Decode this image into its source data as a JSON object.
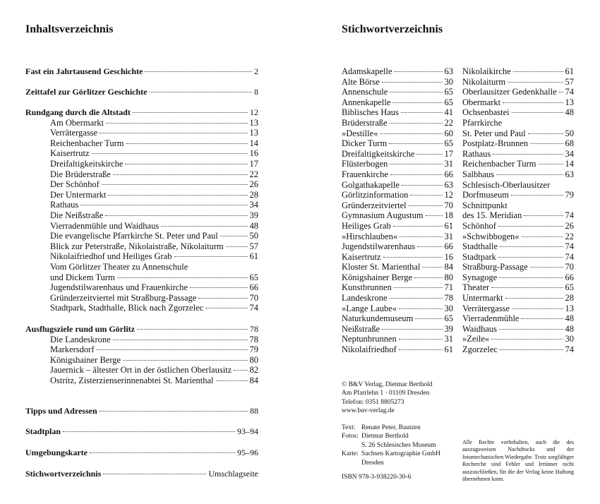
{
  "left": {
    "title": "Inhaltsverzeichnis",
    "sections": [
      {
        "heading": "Fast ein Jahrtausend Geschichte",
        "page": 2,
        "items": []
      },
      {
        "heading": "Zeittafel zur Görlitzer Geschichte",
        "page": 8,
        "items": []
      },
      {
        "heading": "Rundgang durch die Altstadt",
        "page": 12,
        "items": [
          {
            "lines": [
              "Am Obermarkt"
            ],
            "page": 13
          },
          {
            "lines": [
              "Verrätergasse"
            ],
            "page": 13
          },
          {
            "lines": [
              "Reichenbacher Turm"
            ],
            "page": 14
          },
          {
            "lines": [
              "Kaisertrutz"
            ],
            "page": 16
          },
          {
            "lines": [
              "Dreifaltigkeitskirche"
            ],
            "page": 17
          },
          {
            "lines": [
              "Die Brüderstraße"
            ],
            "page": 22
          },
          {
            "lines": [
              "Der Schönhof"
            ],
            "page": 26
          },
          {
            "lines": [
              "Der Untermarkt"
            ],
            "page": 28
          },
          {
            "lines": [
              "Rathaus"
            ],
            "page": 34
          },
          {
            "lines": [
              "Die Neißstraße"
            ],
            "page": 39
          },
          {
            "lines": [
              "Vierradenmühle und Waidhaus"
            ],
            "page": 48
          },
          {
            "lines": [
              "Die evangelische Pfarrkirche St. Peter und Paul"
            ],
            "page": 50
          },
          {
            "lines": [
              "Blick zur Peterstraße, Nikolaistraße, Nikolaiturm"
            ],
            "page": 57
          },
          {
            "lines": [
              "Nikolaifriedhof und Heiliges Grab"
            ],
            "page": 61
          },
          {
            "lines": [
              "Vom Görlitzer Theater zu Annenschule",
              "und Dickem Turm"
            ],
            "page": 65
          },
          {
            "lines": [
              "Jugendstilwarenhaus und Frauenkirche"
            ],
            "page": 66
          },
          {
            "lines": [
              "Gründerzeitviertel mit Straßburg-Passage"
            ],
            "page": 70
          },
          {
            "lines": [
              "Stadtpark, Stadthalle, Blick nach Zgorzelec"
            ],
            "page": 74
          }
        ]
      },
      {
        "heading": "Ausflugsziele rund um Görlitz",
        "page": 78,
        "items": [
          {
            "lines": [
              "Die Landeskrone"
            ],
            "page": 78
          },
          {
            "lines": [
              "Markersdorf"
            ],
            "page": 79
          },
          {
            "lines": [
              "Königshainer Berge"
            ],
            "page": 80
          },
          {
            "lines": [
              "Jauernick – ältester Ort in der östlichen Oberlausitz"
            ],
            "page": 82
          },
          {
            "lines": [
              "Ostritz, Zisterzienserinnenabtei St. Marienthal"
            ],
            "page": 84
          }
        ]
      },
      {
        "heading": "Tipps und Adressen",
        "page": 88,
        "items": []
      },
      {
        "heading": "Stadtplan",
        "page": "93–94",
        "items": []
      },
      {
        "heading": "Umgebungskarte",
        "page": "95–96",
        "items": []
      },
      {
        "heading": "Stichwortverzeichnis",
        "page": "Umschlagseite",
        "items": []
      }
    ]
  },
  "right": {
    "title": "Stichwortverzeichnis",
    "index_columns": [
      [
        {
          "lines": [
            "Adamskapelle"
          ],
          "page": 63
        },
        {
          "lines": [
            "Alte Börse"
          ],
          "page": 30
        },
        {
          "lines": [
            "Annenschule"
          ],
          "page": 65
        },
        {
          "lines": [
            "Annenkapelle"
          ],
          "page": 65
        },
        {
          "lines": [
            "Biblisches Haus"
          ],
          "page": 41
        },
        {
          "lines": [
            "Brüderstraße"
          ],
          "page": 22
        },
        {
          "lines": [
            "»Destille«"
          ],
          "page": 60
        },
        {
          "lines": [
            "Dicker Turm"
          ],
          "page": 65
        },
        {
          "lines": [
            "Dreifaltigkeitskirche"
          ],
          "page": 17
        },
        {
          "lines": [
            "Flüsterbogen"
          ],
          "page": 31
        },
        {
          "lines": [
            "Frauenkirche"
          ],
          "page": 66
        },
        {
          "lines": [
            "Golgathakapelle"
          ],
          "page": 63
        },
        {
          "lines": [
            "Görlitzinformation"
          ],
          "page": 12
        },
        {
          "lines": [
            "Gründerzeitviertel"
          ],
          "page": 70
        },
        {
          "lines": [
            "Gymnasium Augustum"
          ],
          "page": 18
        },
        {
          "lines": [
            "Heiliges Grab"
          ],
          "page": 61
        },
        {
          "lines": [
            "»Hirschlauben«"
          ],
          "page": 31
        },
        {
          "lines": [
            "Jugendstilwarenhaus"
          ],
          "page": 66
        },
        {
          "lines": [
            "Kaisertrutz"
          ],
          "page": 16
        },
        {
          "lines": [
            "Kloster St. Marienthal"
          ],
          "page": 84
        },
        {
          "lines": [
            "Königshainer Berge"
          ],
          "page": 80
        },
        {
          "lines": [
            "Kunstbrunnen"
          ],
          "page": 71
        },
        {
          "lines": [
            "Landeskrone"
          ],
          "page": 78
        },
        {
          "lines": [
            "»Lange Laube«"
          ],
          "page": 30
        },
        {
          "lines": [
            "Naturkundemuseum"
          ],
          "page": 65
        },
        {
          "lines": [
            "Neißstraße"
          ],
          "page": 39
        },
        {
          "lines": [
            "Neptunbrunnen"
          ],
          "page": 31
        },
        {
          "lines": [
            "Nikolaifriedhof"
          ],
          "page": 61
        }
      ],
      [
        {
          "lines": [
            "Nikolaikirche"
          ],
          "page": 61
        },
        {
          "lines": [
            "Nikolaiturm"
          ],
          "page": 57
        },
        {
          "lines": [
            "Oberlausitzer Gedenkhalle"
          ],
          "page": 74
        },
        {
          "lines": [
            "Obermarkt"
          ],
          "page": 13
        },
        {
          "lines": [
            "Ochsenbastei"
          ],
          "page": 48
        },
        {
          "lines": [
            "Pfarrkirche",
            "St. Peter und Paul"
          ],
          "page": 50
        },
        {
          "lines": [
            "Postplatz-Brunnen"
          ],
          "page": 68
        },
        {
          "lines": [
            "Rathaus"
          ],
          "page": 34
        },
        {
          "lines": [
            "Reichenbacher Turm"
          ],
          "page": 14
        },
        {
          "lines": [
            "Salbhaus"
          ],
          "page": 63
        },
        {
          "lines": [
            "Schlesisch-Oberlausitzer",
            "Dorfmuseum"
          ],
          "page": 79
        },
        {
          "lines": [
            "Schnittpunkt",
            "des 15. Meridian"
          ],
          "page": 74
        },
        {
          "lines": [
            "Schönhof"
          ],
          "page": 26
        },
        {
          "lines": [
            "»Schwibbogen«"
          ],
          "page": 22
        },
        {
          "lines": [
            "Stadthalle"
          ],
          "page": 74
        },
        {
          "lines": [
            "Stadtpark"
          ],
          "page": 74
        },
        {
          "lines": [
            "Straßburg-Passage"
          ],
          "page": 70
        },
        {
          "lines": [
            "Synagoge"
          ],
          "page": 66
        },
        {
          "lines": [
            "Theater"
          ],
          "page": 65
        },
        {
          "lines": [
            "Untermarkt"
          ],
          "page": 28
        },
        {
          "lines": [
            "Verrätergasse"
          ],
          "page": 13
        },
        {
          "lines": [
            "Vierradenmühle"
          ],
          "page": 48
        },
        {
          "lines": [
            "Waidhaus"
          ],
          "page": 48
        },
        {
          "lines": [
            "»Zeile«"
          ],
          "page": 30
        },
        {
          "lines": [
            "Zgorzelec"
          ],
          "page": 74
        }
      ]
    ],
    "imprint": {
      "publisher": [
        "© B&V Verlag, Dietmar Berthold",
        "Am Pfarrlehn 1 · 01109 Dresden",
        "Telefon: 0351 8805273",
        "www.buv-verlag.de"
      ],
      "credits": [
        {
          "label": "Text:",
          "lines": [
            "Renate Peter, Bautzen"
          ]
        },
        {
          "label": "Fotos:",
          "lines": [
            "Dietmar Berthold",
            "S. 26 Schlesisches Museum"
          ]
        },
        {
          "label": "Karte:",
          "lines": [
            "Sachsen Kartographie GmbH",
            "Dresden"
          ]
        }
      ],
      "isbn": "ISBN 978-3-938220-30-6",
      "rights": "Alle Rechte vorbehalten, auch die des auszugsweisen Nachdrucks und der fotomechanischen Wiedergabe. Trotz sorgfältiger Recherche sind Fehler und Irrtümer nicht auszuschließen, für die der Verlag keine Haftung übernehmen kann."
    }
  }
}
